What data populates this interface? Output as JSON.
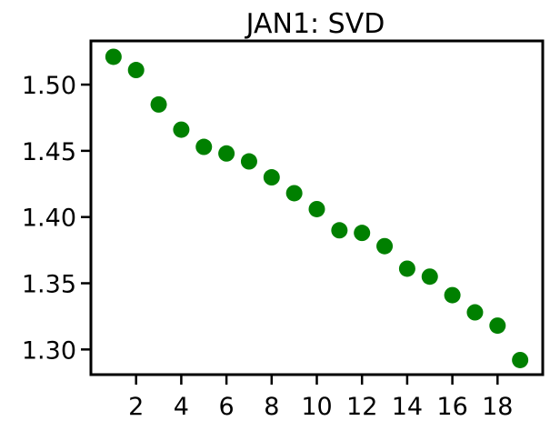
{
  "chart_data": {
    "type": "scatter",
    "title": "JAN1: SVD",
    "xlabel": "",
    "ylabel": "",
    "x": [
      1,
      2,
      3,
      4,
      5,
      6,
      7,
      8,
      9,
      10,
      11,
      12,
      13,
      14,
      15,
      16,
      17,
      18,
      19
    ],
    "y": [
      1.521,
      1.511,
      1.485,
      1.466,
      1.453,
      1.448,
      1.442,
      1.43,
      1.418,
      1.406,
      1.39,
      1.388,
      1.378,
      1.361,
      1.355,
      1.341,
      1.328,
      1.318,
      1.292
    ],
    "xlim": [
      0.0,
      20.0
    ],
    "ylim": [
      1.281,
      1.533
    ],
    "x_ticks": [
      2,
      4,
      6,
      8,
      10,
      12,
      14,
      16,
      18
    ],
    "x_tick_labels": [
      "2",
      "4",
      "6",
      "8",
      "10",
      "12",
      "14",
      "16",
      "18"
    ],
    "y_ticks": [
      1.3,
      1.35,
      1.4,
      1.45,
      1.5
    ],
    "y_tick_labels": [
      "1.30",
      "1.35",
      "1.40",
      "1.45",
      "1.50"
    ],
    "marker_color": "#008000",
    "grid": false,
    "legend": "none"
  }
}
